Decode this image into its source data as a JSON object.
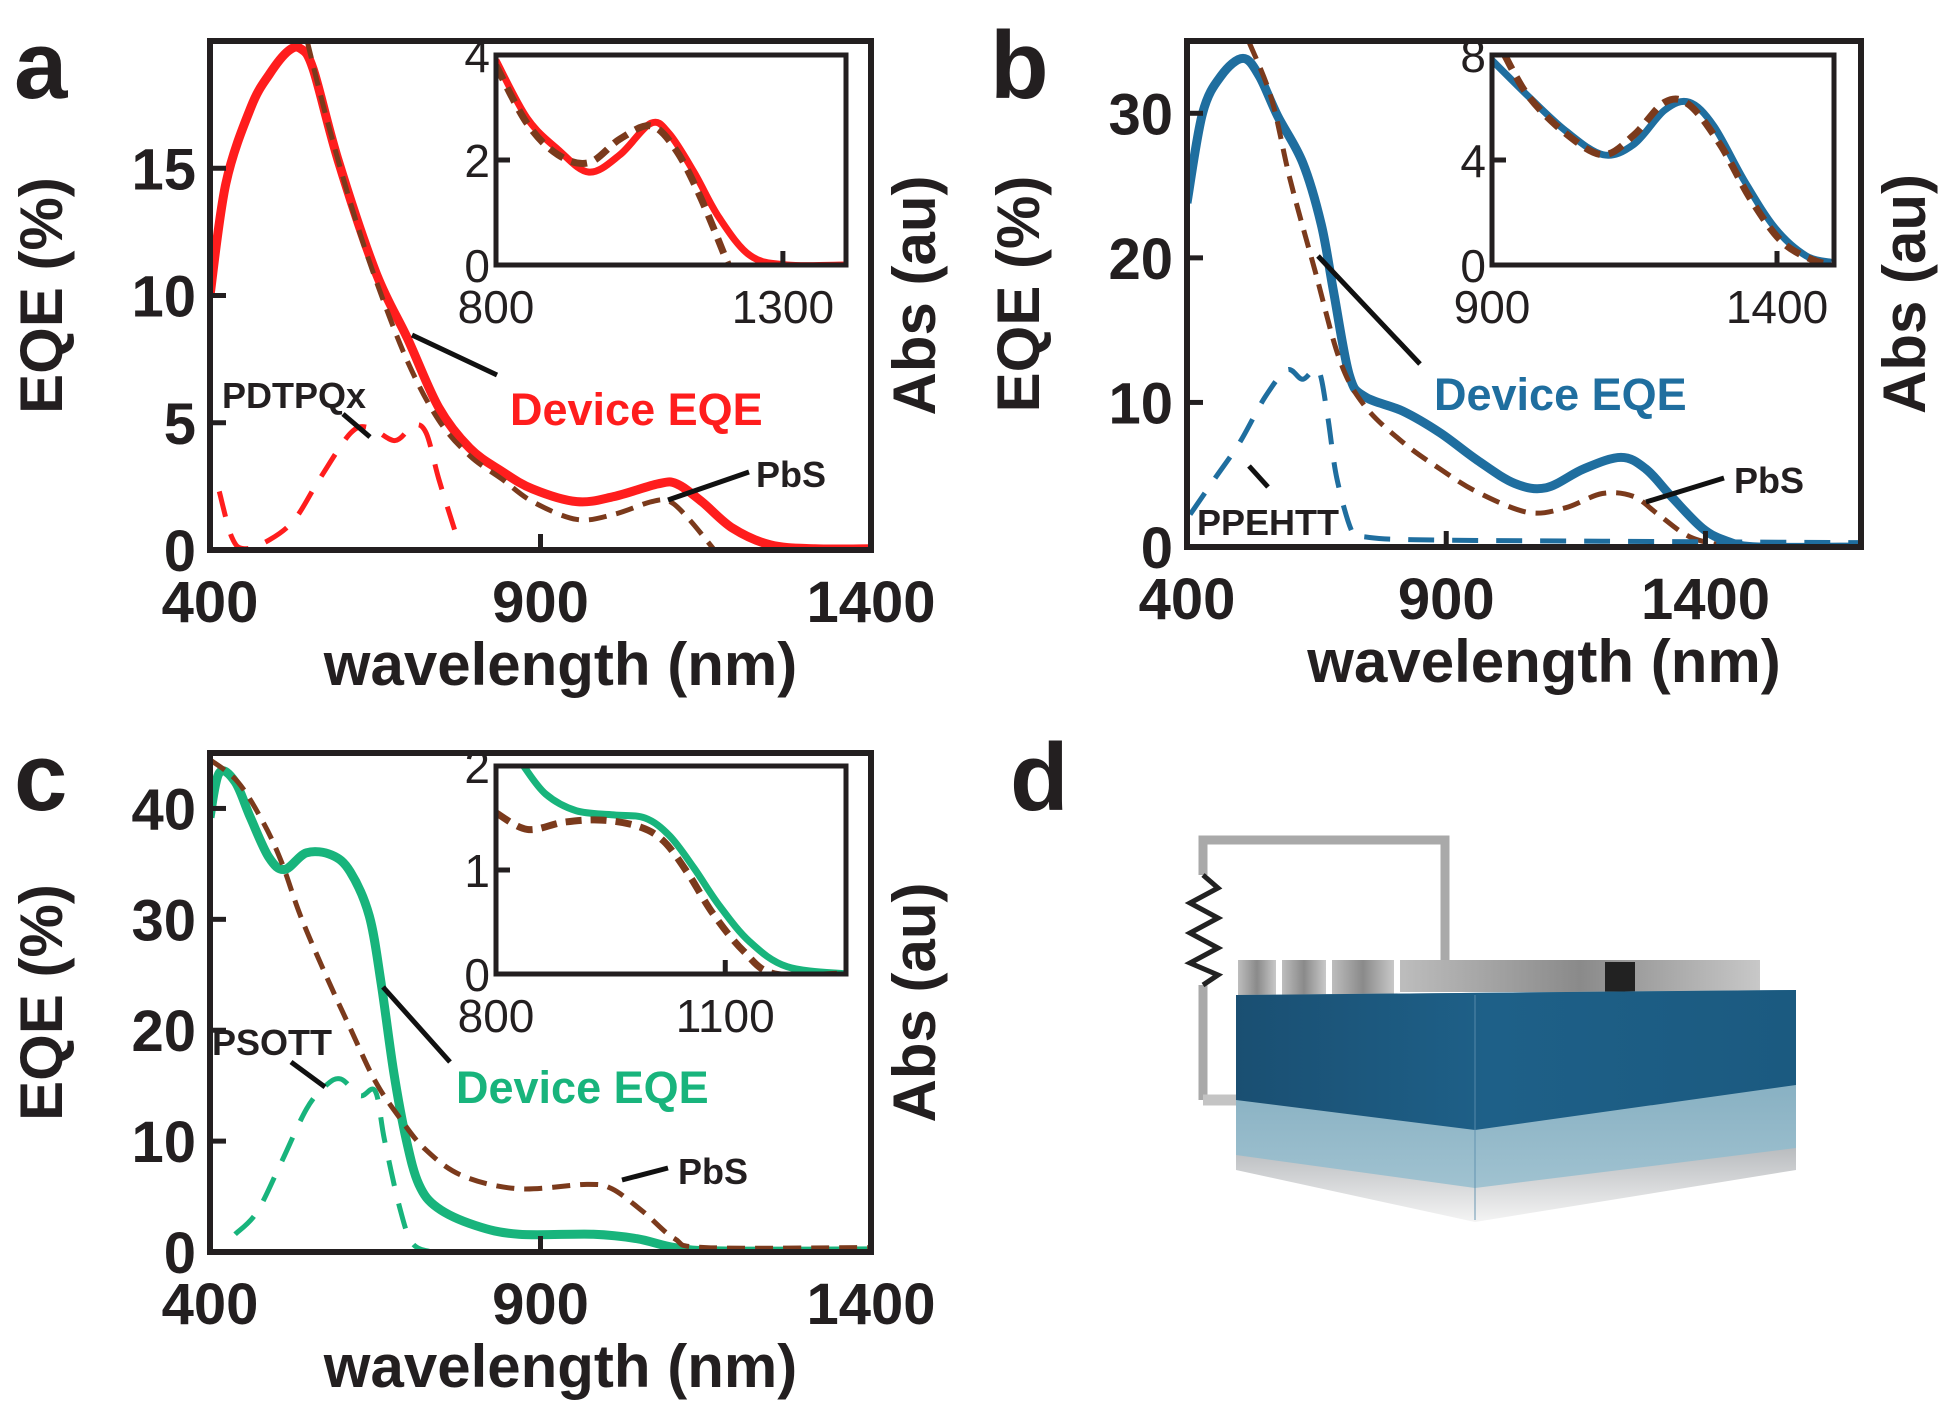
{
  "panel_labels": [
    "a",
    "b",
    "c",
    "d"
  ],
  "colors": {
    "red": "#ff1d1d",
    "brown": "#7b3a1c",
    "blue": "#1f6e9f",
    "green": "#18b47c",
    "axis": "#231f20"
  },
  "chart_data": [
    {
      "panel": "a",
      "type": "line",
      "xlabel": "wavelength (nm)",
      "ylabel": "EQE (%)",
      "y2label": "Abs (au)",
      "xlim": [
        400,
        1400
      ],
      "ylim": [
        0,
        20
      ],
      "xticks": [
        400,
        900,
        1400
      ],
      "yticks": [
        0,
        5,
        10,
        15
      ],
      "series": [
        {
          "name": "Device EQE",
          "style": "solid",
          "color": "#ff1d1d",
          "x": [
            400,
            424,
            462,
            490,
            518,
            537,
            556,
            594,
            651,
            699,
            746,
            793,
            841,
            888,
            955,
            1011,
            1078,
            1106,
            1144,
            1191,
            1248,
            1315,
            1400
          ],
          "y": [
            10,
            14.4,
            17.4,
            18.7,
            19.6,
            19.7,
            18.9,
            15.3,
            10.9,
            8.3,
            5.6,
            4.0,
            3.1,
            2.4,
            1.9,
            2.1,
            2.6,
            2.6,
            1.9,
            0.85,
            0.2,
            0.05,
            0.05
          ]
        },
        {
          "name": "PbS",
          "style": "dashed",
          "color": "#7b3a1c",
          "x": [
            547,
            575,
            613,
            651,
            699,
            746,
            793,
            841,
            888,
            955,
            1011,
            1068,
            1096,
            1125,
            1163
          ],
          "y": [
            20,
            17.1,
            13.6,
            10.6,
            7.4,
            5.1,
            3.7,
            2.8,
            1.9,
            1.2,
            1.4,
            1.9,
            1.9,
            1.2,
            0
          ]
        },
        {
          "name": "PDTPQx",
          "style": "dashed",
          "color": "#ff1d1d",
          "x": [
            414,
            433,
            452,
            490,
            528,
            566,
            613,
            642,
            680,
            708,
            727,
            746,
            770
          ],
          "y": [
            2.3,
            0.5,
            0.05,
            0.4,
            1.2,
            2.8,
            4.6,
            4.8,
            4.3,
            4.9,
            4.6,
            2.8,
            0.8
          ]
        }
      ],
      "inset": {
        "xlim": [
          800,
          1410
        ],
        "ylim": [
          0,
          4
        ],
        "xticks": [
          800,
          1300
        ],
        "yticks": [
          0,
          2,
          4
        ],
        "series": [
          {
            "name": "Device EQE",
            "style": "solid",
            "color": "#ff1d1d",
            "x": [
              800,
              854,
              908,
              962,
              1016,
              1070,
              1102,
              1145,
              1189,
              1243,
              1307,
              1410
            ],
            "y": [
              3.9,
              2.8,
              2.2,
              1.77,
              2.1,
              2.7,
              2.5,
              1.77,
              0.9,
              0.18,
              0,
              0
            ]
          },
          {
            "name": "PbS",
            "style": "dashed",
            "color": "#7b3a1c",
            "x": [
              800,
              854,
              908,
              962,
              1016,
              1070,
              1113,
              1156,
              1205
            ],
            "y": [
              3.8,
              2.7,
              2.1,
              1.95,
              2.4,
              2.65,
              2.2,
              1.3,
              0
            ]
          }
        ]
      }
    },
    {
      "panel": "b",
      "type": "line",
      "xlabel": "wavelength (nm)",
      "ylabel": "EQE (%)",
      "y2label": "Abs (au)",
      "xlim": [
        400,
        1700
      ],
      "ylim": [
        0,
        35
      ],
      "xticks": [
        400,
        900,
        1400
      ],
      "yticks": [
        0,
        10,
        20,
        30
      ],
      "series": [
        {
          "name": "Device EQE",
          "style": "solid",
          "color": "#1f6e9f",
          "x": [
            400,
            430,
            466,
            508,
            539,
            575,
            623,
            659,
            683,
            713,
            743,
            816,
            888,
            960,
            1032,
            1093,
            1165,
            1237,
            1285,
            1334,
            1394,
            1442,
            1502,
            1700
          ],
          "y": [
            23.8,
            30,
            32.6,
            33.8,
            32.6,
            29.8,
            26.6,
            22.3,
            17.6,
            11.9,
            10.4,
            9.4,
            7.9,
            6,
            4.4,
            4.1,
            5.4,
            6.2,
            5.4,
            3.5,
            1.3,
            0.4,
            0,
            0
          ]
        },
        {
          "name": "PbS",
          "style": "dashed",
          "color": "#7b3a1c",
          "x": [
            520,
            563,
            599,
            647,
            695,
            743,
            816,
            888,
            960,
            1057,
            1129,
            1201,
            1261,
            1309,
            1370,
            1442,
            1490
          ],
          "y": [
            34.9,
            31,
            25.4,
            19.1,
            12.9,
            9.75,
            7.25,
            5.4,
            3.8,
            2.4,
            2.7,
            3.7,
            3.5,
            2.25,
            0.7,
            0.06,
            0
          ]
        },
        {
          "name": "PPEHTT",
          "style": "dashed",
          "color": "#1f6e9f",
          "x": [
            406,
            454,
            502,
            551,
            593,
            623,
            653,
            671,
            689,
            719,
            743,
            840,
            1200,
            1700
          ],
          "y": [
            2.25,
            4.75,
            7.25,
            10.4,
            12.25,
            11.6,
            12.25,
            9.1,
            4.75,
            1.0,
            0.7,
            0.5,
            0.4,
            0.3
          ]
        }
      ],
      "inset": {
        "xlim": [
          900,
          1500
        ],
        "ylim": [
          0,
          8
        ],
        "xticks": [
          900,
          1400
        ],
        "yticks": [
          0,
          4,
          8
        ],
        "series": [
          {
            "name": "Device EQE",
            "style": "solid",
            "color": "#1f6e9f",
            "x": [
              900,
              965,
              1030,
              1095,
              1149,
              1203,
              1246,
              1289,
              1343,
              1397,
              1451,
              1495
            ],
            "y": [
              7.8,
              6.4,
              5.1,
              4.2,
              4.6,
              5.9,
              6.2,
              5.3,
              3.2,
              1.4,
              0.35,
              0.1
            ]
          },
          {
            "name": "PbS",
            "style": "dashed",
            "color": "#7b3a1c",
            "x": [
              922,
              965,
              1030,
              1095,
              1149,
              1203,
              1246,
              1300,
              1354,
              1408,
              1462,
              1500
            ],
            "y": [
              8,
              6.4,
              5.0,
              4.2,
              4.95,
              6.2,
              6.1,
              4.6,
              2.5,
              0.9,
              0.2,
              0
            ]
          }
        ]
      }
    },
    {
      "panel": "c",
      "type": "line",
      "xlabel": "wavelength (nm)",
      "ylabel": "EQE (%)",
      "y2label": "Abs (au)",
      "xlim": [
        400,
        1400
      ],
      "ylim": [
        0,
        45
      ],
      "xticks": [
        400,
        900,
        1400
      ],
      "yticks": [
        0,
        10,
        20,
        30,
        40
      ],
      "series": [
        {
          "name": "Device EQE",
          "style": "solid",
          "color": "#18b47c",
          "x": [
            400,
            414,
            438,
            461,
            489,
            513,
            546,
            584,
            612,
            641,
            659,
            678,
            697,
            716,
            744,
            801,
            867,
            980,
            1046,
            1103,
            1169,
            1400
          ],
          "y": [
            39.2,
            43.2,
            42.4,
            39.2,
            35.6,
            34.5,
            36,
            35.8,
            34.3,
            30.3,
            24.2,
            16.2,
            10.1,
            6.1,
            4.0,
            2.4,
            1.6,
            1.6,
            1.2,
            0.4,
            0.1,
            0.1
          ]
        },
        {
          "name": "PbS",
          "style": "dashed",
          "color": "#7b3a1c",
          "x": [
            400,
            442,
            480,
            508,
            537,
            575,
            612,
            650,
            687,
            725,
            781,
            867,
            970,
            1008,
            1056,
            1103,
            1150,
            1400
          ],
          "y": [
            44.4,
            42.4,
            38.8,
            35.2,
            30.3,
            25,
            20.2,
            15.4,
            12.1,
            9.3,
            6.9,
            5.7,
            6.1,
            5.7,
            3.6,
            1.2,
            0.4,
            0.4
          ]
        },
        {
          "name": "PSOTT",
          "style": "dashed",
          "color": "#18b47c",
          "x": [
            438,
            471,
            508,
            546,
            575,
            598,
            627,
            650,
            664,
            687,
            706,
            735
          ],
          "y": [
            1.6,
            3.6,
            8.1,
            12.9,
            15,
            15.6,
            14.1,
            14.5,
            10.1,
            4,
            0.8,
            0
          ]
        }
      ],
      "inset": {
        "xlim": [
          800,
          1258
        ],
        "ylim": [
          0,
          2
        ],
        "xticks": [
          800,
          1100
        ],
        "yticks": [
          0,
          1,
          2
        ],
        "series": [
          {
            "name": "Device EQE",
            "style": "solid",
            "color": "#18b47c",
            "x": [
              836,
              865,
              905,
              954,
              995,
              1027,
              1059,
              1092,
              1132,
              1181,
              1258
            ],
            "y": [
              2,
              1.73,
              1.57,
              1.53,
              1.5,
              1.33,
              1.02,
              0.66,
              0.31,
              0.07,
              0
            ]
          },
          {
            "name": "PbS",
            "style": "dashed",
            "color": "#7b3a1c",
            "x": [
              800,
              841,
              889,
              938,
              986,
              1019,
              1051,
              1084,
              1124,
              1165,
              1258
            ],
            "y": [
              1.55,
              1.39,
              1.46,
              1.48,
              1.42,
              1.28,
              0.97,
              0.58,
              0.22,
              0,
              0
            ]
          }
        ]
      }
    }
  ]
}
